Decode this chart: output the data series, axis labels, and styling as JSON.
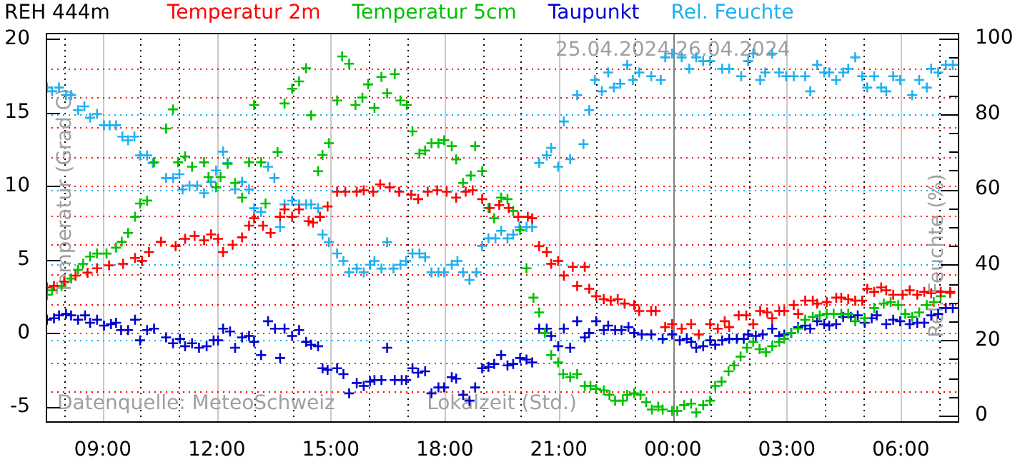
{
  "chart_data": {
    "type": "scatter",
    "title": "REH 444m",
    "xlabel": "Lokalzeit (Std.)",
    "ylabel": "Temperatur (Grad C)",
    "y2label": "Rel. Feuchte (%)",
    "xlim": [
      "2024-04-25T07:30",
      "2024-04-26T07:30"
    ],
    "xticks": [
      {
        "value": "2024-04-25T08:00",
        "label": null
      },
      {
        "value": "2024-04-25T09:00",
        "label": "09:00"
      },
      {
        "value": "2024-04-25T10:00",
        "label": null
      },
      {
        "value": "2024-04-25T11:00",
        "label": null
      },
      {
        "value": "2024-04-25T12:00",
        "label": "12:00"
      },
      {
        "value": "2024-04-25T13:00",
        "label": null
      },
      {
        "value": "2024-04-25T14:00",
        "label": null
      },
      {
        "value": "2024-04-25T15:00",
        "label": "15:00"
      },
      {
        "value": "2024-04-25T16:00",
        "label": null
      },
      {
        "value": "2024-04-25T17:00",
        "label": null
      },
      {
        "value": "2024-04-25T18:00",
        "label": "18:00"
      },
      {
        "value": "2024-04-25T19:00",
        "label": null
      },
      {
        "value": "2024-04-25T20:00",
        "label": null
      },
      {
        "value": "2024-04-25T21:00",
        "label": "21:00"
      },
      {
        "value": "2024-04-25T22:00",
        "label": null
      },
      {
        "value": "2024-04-25T23:00",
        "label": null
      },
      {
        "value": "2024-04-26T00:00",
        "label": "00:00"
      },
      {
        "value": "2024-04-26T01:00",
        "label": null
      },
      {
        "value": "2024-04-26T02:00",
        "label": null
      },
      {
        "value": "2024-04-26T03:00",
        "label": "03:00"
      },
      {
        "value": "2024-04-26T04:00",
        "label": null
      },
      {
        "value": "2024-04-26T05:00",
        "label": null
      },
      {
        "value": "2024-04-26T06:00",
        "label": "06:00"
      },
      {
        "value": "2024-04-26T07:00",
        "label": null
      }
    ],
    "ylim": [
      -6,
      20.4
    ],
    "yticks": [
      -5,
      {
        "value": -4,
        "label": null
      },
      {
        "value": -2,
        "label": null
      },
      0,
      {
        "value": 2,
        "label": null
      },
      {
        "value": 4,
        "label": null
      },
      5,
      {
        "value": 6,
        "label": null
      },
      {
        "value": 8,
        "label": null
      },
      10,
      {
        "value": 12,
        "label": null
      },
      {
        "value": 14,
        "label": null
      },
      15,
      {
        "value": 16,
        "label": null
      },
      {
        "value": 18,
        "label": null
      },
      20
    ],
    "y2lim": [
      -1.5,
      101.5
    ],
    "y2ticks": [
      0,
      {
        "value": 5,
        "label": null
      },
      {
        "value": 10,
        "label": null
      },
      {
        "value": 15,
        "label": null
      },
      20,
      {
        "value": 25,
        "label": null
      },
      {
        "value": 30,
        "label": null
      },
      {
        "value": 35,
        "label": null
      },
      40,
      {
        "value": 45,
        "label": null
      },
      {
        "value": 50,
        "label": null
      },
      {
        "value": 55,
        "label": null
      },
      60,
      {
        "value": 65,
        "label": null
      },
      {
        "value": 70,
        "label": null
      },
      {
        "value": 75,
        "label": null
      },
      80,
      {
        "value": 85,
        "label": null
      },
      {
        "value": 90,
        "label": null
      },
      {
        "value": 95,
        "label": null
      },
      100
    ],
    "grid": true,
    "legend": "top",
    "marker": "cross",
    "ref_lines": [
      {
        "axis": "x",
        "value": "2024-04-26T00:00",
        "color": "#808080"
      }
    ],
    "annotations": [
      {
        "text": "25.04.2024",
        "x": "2024-04-26T00:00",
        "y": 19.2
      },
      {
        "text": "26.04.2024",
        "x": "2024-04-26T00:00",
        "y": 19.2
      },
      "Datenquelle: MeteoSchweiz"
    ],
    "series": [
      {
        "name": "Temperatur 2m",
        "color": "#ff0000",
        "x": [
          "2024-04-25T07:32",
          "2024-04-25T07:43",
          "2024-04-25T07:59",
          "2024-04-25T08:17",
          "2024-04-25T08:36",
          "2024-04-25T08:51",
          "2024-04-25T09:10",
          "2024-04-25T09:32",
          "2024-04-25T09:51",
          "2024-04-25T10:02",
          "2024-04-25T10:13",
          "2024-04-25T10:32",
          "2024-04-25T10:55",
          "2024-04-25T11:10",
          "2024-04-25T11:25",
          "2024-04-25T11:40",
          "2024-04-25T11:51",
          "2024-04-25T12:02",
          "2024-04-25T12:10",
          "2024-04-25T12:25",
          "2024-04-25T12:40",
          "2024-04-25T12:51",
          "2024-04-25T12:59",
          "2024-04-25T13:13",
          "2024-04-25T13:25",
          "2024-04-25T13:40",
          "2024-04-25T13:47",
          "2024-04-25T13:59",
          "2024-04-25T14:10",
          "2024-04-25T14:25",
          "2024-04-25T14:32",
          "2024-04-25T14:43",
          "2024-04-25T14:55",
          "2024-04-25T15:10",
          "2024-04-25T15:23",
          "2024-04-25T15:41",
          "2024-04-25T15:52",
          "2024-04-25T16:07",
          "2024-04-25T16:18",
          "2024-04-25T16:33",
          "2024-04-25T16:48",
          "2024-04-25T17:07",
          "2024-04-25T17:18",
          "2024-04-25T17:33",
          "2024-04-25T17:48",
          "2024-04-25T18:03",
          "2024-04-25T18:18",
          "2024-04-25T18:33",
          "2024-04-25T18:44",
          "2024-04-25T18:59",
          "2024-04-25T19:11",
          "2024-04-25T19:26",
          "2024-04-25T19:41",
          "2024-04-25T19:56",
          "2024-04-25T20:11",
          "2024-04-25T20:18",
          "2024-04-25T20:29",
          "2024-04-25T20:41",
          "2024-04-25T20:48",
          "2024-04-25T20:59",
          "2024-04-25T21:08",
          "2024-04-25T21:22",
          "2024-04-25T21:29",
          "2024-04-25T21:41",
          "2024-04-25T21:48",
          "2024-04-25T21:59",
          "2024-04-25T22:11",
          "2024-04-25T22:22",
          "2024-04-25T22:33",
          "2024-04-25T22:44",
          "2024-04-25T22:59",
          "2024-04-25T23:07",
          "2024-04-25T23:26",
          "2024-04-25T23:33",
          "2024-04-25T23:48",
          "2024-04-25T23:59",
          "2024-04-26T00:14",
          "2024-04-26T00:29",
          "2024-04-26T00:41",
          "2024-04-26T00:59",
          "2024-04-26T01:11",
          "2024-04-26T01:22",
          "2024-04-26T01:29",
          "2024-04-26T01:44",
          "2024-04-26T01:56",
          "2024-04-26T02:07",
          "2024-04-26T02:18",
          "2024-04-26T02:29",
          "2024-04-26T02:37",
          "2024-04-26T02:48",
          "2024-04-26T02:56",
          "2024-04-26T03:11",
          "2024-04-26T03:18",
          "2024-04-26T03:29",
          "2024-04-26T03:41",
          "2024-04-26T03:48",
          "2024-04-26T04:03",
          "2024-04-26T04:18",
          "2024-04-26T04:26",
          "2024-04-26T04:37",
          "2024-04-26T04:48",
          "2024-04-26T04:59",
          "2024-04-26T05:07",
          "2024-04-26T05:18",
          "2024-04-26T05:29",
          "2024-04-26T05:37",
          "2024-04-26T05:48",
          "2024-04-26T06:03",
          "2024-04-26T06:14",
          "2024-04-26T06:26",
          "2024-04-26T06:37",
          "2024-04-26T06:48",
          "2024-04-26T07:03",
          "2024-04-26T07:18"
        ],
        "values": [
          3.1,
          3.2,
          3.5,
          3.9,
          4.1,
          4.4,
          4.6,
          4.7,
          5.1,
          4.9,
          5.5,
          6.2,
          5.9,
          6.4,
          6.6,
          6.3,
          6.7,
          6.4,
          5.5,
          6.0,
          6.5,
          7.3,
          7.8,
          7.3,
          6.8,
          7.9,
          8.4,
          7.9,
          8.4,
          7.6,
          7.5,
          7.9,
          8.6,
          9.6,
          9.6,
          9.6,
          9.7,
          9.6,
          10.1,
          9.9,
          9.6,
          9.4,
          9.1,
          9.6,
          9.7,
          9.6,
          9.2,
          9.6,
          9.7,
          9.1,
          8.5,
          8.7,
          8.5,
          7.9,
          7.9,
          7.8,
          5.9,
          5.5,
          4.7,
          4.9,
          3.9,
          4.5,
          3.2,
          4.5,
          3.0,
          2.5,
          2.3,
          2.2,
          2.3,
          2.0,
          1.9,
          1.5,
          1.5,
          1.5,
          0.4,
          0.6,
          0.3,
          0.6,
          -0.1,
          0.6,
          0.3,
          0.8,
          0.4,
          1.2,
          1.2,
          0.6,
          1.5,
          1.4,
          1.0,
          1.5,
          1.5,
          1.9,
          1.3,
          2.2,
          2.2,
          2.0,
          2.1,
          2.4,
          2.4,
          2.3,
          2.2,
          2.2,
          3.0,
          2.8,
          3.1,
          2.9,
          2.6,
          2.6,
          2.9,
          2.6,
          2.8,
          2.7,
          2.8,
          2.8
        ]
      },
      {
        "name": "Temperatur 5cm",
        "color": "#00c000",
        "x": [
          "2024-04-25T07:32",
          "2024-04-25T07:40",
          "2024-04-25T07:55",
          "2024-04-25T08:10",
          "2024-04-25T08:21",
          "2024-04-25T08:29",
          "2024-04-25T08:40",
          "2024-04-25T08:51",
          "2024-04-25T09:06",
          "2024-04-25T09:21",
          "2024-04-25T09:30",
          "2024-04-25T09:40",
          "2024-04-25T09:51",
          "2024-04-25T09:59",
          "2024-04-25T10:10",
          "2024-04-25T10:21",
          "2024-04-25T10:40",
          "2024-04-25T10:51",
          "2024-04-25T10:59",
          "2024-04-25T11:10",
          "2024-04-25T11:21",
          "2024-04-25T11:40",
          "2024-04-25T11:47",
          "2024-04-25T11:59",
          "2024-04-25T12:06",
          "2024-04-25T12:17",
          "2024-04-25T12:29",
          "2024-04-25T12:40",
          "2024-04-25T12:51",
          "2024-04-25T12:59",
          "2024-04-25T13:10",
          "2024-04-25T13:17",
          "2024-04-25T13:36",
          "2024-04-25T13:47",
          "2024-04-25T13:59",
          "2024-04-25T14:10",
          "2024-04-25T14:21",
          "2024-04-25T14:29",
          "2024-04-25T14:40",
          "2024-04-25T14:47",
          "2024-04-25T14:57",
          "2024-04-25T15:10",
          "2024-04-25T15:18",
          "2024-04-25T15:29",
          "2024-04-25T15:39",
          "2024-04-25T15:50",
          "2024-04-25T15:59",
          "2024-04-25T16:09",
          "2024-04-25T16:20",
          "2024-04-25T16:29",
          "2024-04-25T16:41",
          "2024-04-25T16:50",
          "2024-04-25T17:00",
          "2024-04-25T17:09",
          "2024-04-25T17:20",
          "2024-04-25T17:29",
          "2024-04-25T17:39",
          "2024-04-25T17:50",
          "2024-04-25T17:59",
          "2024-04-25T18:11",
          "2024-04-25T18:18",
          "2024-04-25T18:29",
          "2024-04-25T18:41",
          "2024-04-25T18:48",
          "2024-04-25T18:59",
          "2024-04-25T19:09",
          "2024-04-25T19:18",
          "2024-04-25T19:29",
          "2024-04-25T19:39",
          "2024-04-25T19:48",
          "2024-04-25T19:59",
          "2024-04-25T20:09",
          "2024-04-25T20:20",
          "2024-04-25T20:29",
          "2024-04-25T20:38",
          "2024-04-25T20:48",
          "2024-04-25T20:59",
          "2024-04-25T21:07",
          "2024-04-25T21:18",
          "2024-04-25T21:29",
          "2024-04-25T21:41",
          "2024-04-25T21:50",
          "2024-04-25T21:59",
          "2024-04-25T22:11",
          "2024-04-25T22:20",
          "2024-04-25T22:29",
          "2024-04-25T22:41",
          "2024-04-25T22:48",
          "2024-04-25T22:59",
          "2024-04-25T23:09",
          "2024-04-25T23:18",
          "2024-04-25T23:27",
          "2024-04-25T23:37",
          "2024-04-25T23:44",
          "2024-04-25T23:59",
          "2024-04-26T00:07",
          "2024-04-26T00:18",
          "2024-04-26T00:29",
          "2024-04-26T00:37",
          "2024-04-26T00:48",
          "2024-04-26T00:59",
          "2024-04-26T01:07",
          "2024-04-26T01:17",
          "2024-04-26T01:28",
          "2024-04-26T01:37",
          "2024-04-26T01:47",
          "2024-04-26T01:57",
          "2024-04-26T02:07",
          "2024-04-26T02:17",
          "2024-04-26T02:27",
          "2024-04-26T02:37",
          "2024-04-26T02:48",
          "2024-04-26T02:56",
          "2024-04-26T03:07",
          "2024-04-26T03:18",
          "2024-04-26T03:29",
          "2024-04-26T03:41",
          "2024-04-26T03:52",
          "2024-04-26T04:03",
          "2024-04-26T04:14",
          "2024-04-26T04:26",
          "2024-04-26T04:37",
          "2024-04-26T04:48",
          "2024-04-26T05:03",
          "2024-04-26T05:18",
          "2024-04-26T05:33",
          "2024-04-26T05:44",
          "2024-04-26T05:56",
          "2024-04-26T06:07",
          "2024-04-26T06:18",
          "2024-04-26T06:29",
          "2024-04-26T06:41",
          "2024-04-26T06:52",
          "2024-04-26T07:03",
          "2024-04-26T07:18"
        ],
        "values": [
          2.6,
          2.9,
          3.2,
          3.7,
          4.3,
          4.7,
          5.2,
          5.4,
          5.4,
          5.8,
          6.2,
          6.8,
          7.9,
          8.8,
          9.0,
          11.6,
          13.9,
          15.2,
          11.6,
          12.0,
          11.3,
          11.6,
          10.6,
          9.9,
          10.6,
          11.5,
          10.2,
          9.2,
          11.6,
          15.5,
          11.6,
          8.8,
          12.3,
          15.6,
          16.6,
          17.1,
          18.0,
          14.8,
          11.0,
          12.1,
          12.9,
          15.8,
          18.8,
          18.3,
          15.5,
          16.0,
          16.9,
          15.3,
          17.4,
          16.3,
          17.6,
          15.8,
          15.5,
          13.7,
          12.2,
          12.4,
          12.9,
          12.9,
          13.1,
          12.7,
          11.8,
          10.2,
          10.7,
          12.7,
          11.0,
          8.5,
          7.8,
          9.2,
          9.1,
          8.3,
          7.0,
          4.4,
          2.4,
          1.4,
          0.0,
          -1.5,
          -2.0,
          -2.8,
          -3.0,
          -2.8,
          -3.6,
          -3.6,
          -3.8,
          -3.9,
          -4.2,
          -4.6,
          -4.6,
          -4.2,
          -4.1,
          -4.2,
          -4.7,
          -5.2,
          -5.0,
          -5.2,
          -5.3,
          -5.3,
          -4.9,
          -4.8,
          -5.4,
          -4.9,
          -4.6,
          -3.6,
          -3.3,
          -2.6,
          -2.2,
          -1.6,
          -1.0,
          -0.6,
          -1.1,
          -1.3,
          -0.9,
          -0.6,
          -0.4,
          0.0,
          0.3,
          0.9,
          1.1,
          1.2,
          1.3,
          1.3,
          1.3,
          1.3,
          0.8,
          1.0,
          1.7,
          2.0,
          2.1,
          1.9,
          1.3,
          1.1,
          1.4,
          1.9,
          2.1,
          2.5,
          2.7
        ]
      },
      {
        "name": "Taupunkt",
        "color": "#0000d0",
        "x": [
          "2024-04-25T07:32",
          "2024-04-25T07:43",
          "2024-04-25T07:51",
          "2024-04-25T08:02",
          "2024-04-25T08:10",
          "2024-04-25T08:21",
          "2024-04-25T08:32",
          "2024-04-25T08:40",
          "2024-04-25T08:51",
          "2024-04-25T09:02",
          "2024-04-25T09:13",
          "2024-04-25T09:21",
          "2024-04-25T09:29",
          "2024-04-25T09:40",
          "2024-04-25T09:51",
          "2024-04-25T09:59",
          "2024-04-25T10:10",
          "2024-04-25T10:21",
          "2024-04-25T10:40",
          "2024-04-25T10:51",
          "2024-04-25T11:02",
          "2024-04-25T11:10",
          "2024-04-25T11:21",
          "2024-04-25T11:32",
          "2024-04-25T11:44",
          "2024-04-25T11:55",
          "2024-04-25T12:02",
          "2024-04-25T12:10",
          "2024-04-25T12:21",
          "2024-04-25T12:29",
          "2024-04-25T12:40",
          "2024-04-25T12:51",
          "2024-04-25T12:59",
          "2024-04-25T13:10",
          "2024-04-25T13:21",
          "2024-04-25T13:32",
          "2024-04-25T13:40",
          "2024-04-25T13:47",
          "2024-04-25T13:59",
          "2024-04-25T14:10",
          "2024-04-25T14:21",
          "2024-04-25T14:29",
          "2024-04-25T14:40",
          "2024-04-25T14:47",
          "2024-04-25T14:55",
          "2024-04-25T15:10",
          "2024-04-25T15:20",
          "2024-04-25T15:29",
          "2024-04-25T15:41",
          "2024-04-25T15:52",
          "2024-04-25T16:02",
          "2024-04-25T16:09",
          "2024-04-25T16:20",
          "2024-04-25T16:29",
          "2024-04-25T16:41",
          "2024-04-25T16:52",
          "2024-04-25T16:59",
          "2024-04-25T17:09",
          "2024-04-25T17:18",
          "2024-04-25T17:29",
          "2024-04-25T17:39",
          "2024-04-25T17:50",
          "2024-04-25T17:59",
          "2024-04-25T18:11",
          "2024-04-25T18:18",
          "2024-04-25T18:29",
          "2024-04-25T18:39",
          "2024-04-25T18:48",
          "2024-04-25T18:59",
          "2024-04-25T19:09",
          "2024-04-25T19:18",
          "2024-04-25T19:29",
          "2024-04-25T19:39",
          "2024-04-25T19:48",
          "2024-04-25T19:59",
          "2024-04-25T20:09",
          "2024-04-25T20:18",
          "2024-04-25T20:29",
          "2024-04-25T20:41",
          "2024-04-25T20:48",
          "2024-04-25T20:59",
          "2024-04-25T21:08",
          "2024-04-25T21:18",
          "2024-04-25T21:29",
          "2024-04-25T21:41",
          "2024-04-25T21:48",
          "2024-04-25T21:59",
          "2024-04-25T22:11",
          "2024-04-25T22:18",
          "2024-04-25T22:29",
          "2024-04-25T22:39",
          "2024-04-25T22:50",
          "2024-04-25T22:59",
          "2024-04-25T23:11",
          "2024-04-25T23:26",
          "2024-04-25T23:44",
          "2024-04-25T23:59",
          "2024-04-26T00:11",
          "2024-04-26T00:22",
          "2024-04-26T00:29",
          "2024-04-26T00:37",
          "2024-04-26T00:48",
          "2024-04-26T00:59",
          "2024-04-26T01:07",
          "2024-04-26T01:18",
          "2024-04-26T01:29",
          "2024-04-26T01:41",
          "2024-04-26T01:52",
          "2024-04-26T01:59",
          "2024-04-26T02:11",
          "2024-04-26T02:22",
          "2024-04-26T02:37",
          "2024-04-26T02:48",
          "2024-04-26T02:56",
          "2024-04-26T03:07",
          "2024-04-26T03:18",
          "2024-04-26T03:29",
          "2024-04-26T03:37",
          "2024-04-26T03:48",
          "2024-04-26T03:59",
          "2024-04-26T04:07",
          "2024-04-26T04:18",
          "2024-04-26T04:29",
          "2024-04-26T04:41",
          "2024-04-26T04:52",
          "2024-04-26T05:03",
          "2024-04-26T05:14",
          "2024-04-26T05:22",
          "2024-04-26T05:37",
          "2024-04-26T05:48",
          "2024-04-26T05:59",
          "2024-04-26T06:14",
          "2024-04-26T06:26",
          "2024-04-26T06:37",
          "2024-04-26T06:48",
          "2024-04-26T06:59",
          "2024-04-26T07:11",
          "2024-04-26T07:22"
        ],
        "values": [
          0.9,
          1.0,
          1.2,
          1.3,
          1.2,
          0.9,
          1.2,
          0.7,
          0.9,
          0.5,
          0.6,
          0.7,
          0.2,
          0.2,
          0.9,
          -0.5,
          0.2,
          0.3,
          -0.3,
          -0.7,
          -0.4,
          -0.9,
          -0.7,
          -1.0,
          -0.9,
          -0.5,
          -0.5,
          0.3,
          0.1,
          -1.0,
          -0.3,
          -0.2,
          -0.6,
          -1.5,
          0.8,
          0.3,
          -1.7,
          0.3,
          -0.2,
          0.2,
          -0.6,
          -0.8,
          -0.9,
          -2.4,
          -2.5,
          -2.4,
          -2.8,
          -4.1,
          -3.4,
          -3.6,
          -3.3,
          -3.2,
          -3.2,
          -1.0,
          -3.2,
          -3.2,
          -3.2,
          -2.4,
          -2.7,
          -2.6,
          -4.1,
          -3.7,
          -3.7,
          -3.0,
          -3.1,
          -4.2,
          -4.6,
          -3.7,
          -2.4,
          -2.3,
          -2.1,
          -1.5,
          -2.2,
          -2.1,
          -1.7,
          -1.8,
          -2.0,
          0.3,
          0.3,
          -0.2,
          -0.9,
          0.3,
          -1.0,
          0.8,
          -0.3,
          0.0,
          0.8,
          0.2,
          0.5,
          0.2,
          0.2,
          0.4,
          0.0,
          -0.1,
          -0.1,
          -0.4,
          -0.1,
          -0.5,
          -0.4,
          -0.6,
          -1.0,
          -0.9,
          -0.5,
          -0.8,
          -0.5,
          -0.4,
          -0.4,
          -0.4,
          -0.1,
          -0.2,
          -0.1,
          0.3,
          -0.2,
          -0.1,
          0.0,
          0.4,
          0.5,
          0.3,
          0.8,
          0.6,
          0.5,
          0.6,
          1.1,
          1.1,
          1.2,
          0.7,
          1.0,
          1.2,
          0.6,
          0.9,
          0.8,
          0.6,
          0.7,
          0.7,
          1.2,
          1.3,
          1.7,
          1.7
        ]
      },
      {
        "name": "Rel. Feuchte",
        "color": "#20b0f0",
        "axis": "y2",
        "x": [
          "2024-04-25T07:32",
          "2024-04-25T07:40",
          "2024-04-25T07:51",
          "2024-04-25T08:02",
          "2024-04-25T08:10",
          "2024-04-25T08:21",
          "2024-04-25T08:31",
          "2024-04-25T08:40",
          "2024-04-25T08:51",
          "2024-04-25T09:02",
          "2024-04-25T09:11",
          "2024-04-25T09:21",
          "2024-04-25T09:31",
          "2024-04-25T09:40",
          "2024-04-25T09:50",
          "2024-04-25T09:59",
          "2024-04-25T10:10",
          "2024-04-25T10:19",
          "2024-04-25T10:40",
          "2024-04-25T10:51",
          "2024-04-25T11:01",
          "2024-04-25T11:06",
          "2024-04-25T11:17",
          "2024-04-25T11:29",
          "2024-04-25T11:40",
          "2024-04-25T11:51",
          "2024-04-25T11:59",
          "2024-04-25T12:10",
          "2024-04-25T12:17",
          "2024-04-25T12:29",
          "2024-04-25T12:40",
          "2024-04-25T12:51",
          "2024-04-25T12:59",
          "2024-04-25T13:10",
          "2024-04-25T13:21",
          "2024-04-25T13:31",
          "2024-04-25T13:40",
          "2024-04-25T13:47",
          "2024-04-25T13:59",
          "2024-04-25T14:10",
          "2024-04-25T14:21",
          "2024-04-25T14:29",
          "2024-04-25T14:40",
          "2024-04-25T14:47",
          "2024-04-25T14:57",
          "2024-04-25T15:10",
          "2024-04-25T15:20",
          "2024-04-25T15:29",
          "2024-04-25T15:41",
          "2024-04-25T15:52",
          "2024-04-25T16:02",
          "2024-04-25T16:09",
          "2024-04-25T16:20",
          "2024-04-25T16:29",
          "2024-04-25T16:39",
          "2024-04-25T16:50",
          "2024-04-25T16:59",
          "2024-04-25T17:09",
          "2024-04-25T17:20",
          "2024-04-25T17:29",
          "2024-04-25T17:39",
          "2024-04-25T17:50",
          "2024-04-25T17:59",
          "2024-04-25T18:11",
          "2024-04-25T18:20",
          "2024-04-25T18:29",
          "2024-04-25T18:39",
          "2024-04-25T18:50",
          "2024-04-25T18:59",
          "2024-04-25T19:09",
          "2024-04-25T19:20",
          "2024-04-25T19:29",
          "2024-04-25T19:39",
          "2024-04-25T19:48",
          "2024-04-25T19:58",
          "2024-04-25T20:09",
          "2024-04-25T20:18",
          "2024-04-25T20:29",
          "2024-04-25T20:41",
          "2024-04-25T20:48",
          "2024-04-25T20:59",
          "2024-04-25T21:08",
          "2024-04-25T21:18",
          "2024-04-25T21:29",
          "2024-04-25T21:39",
          "2024-04-25T21:48",
          "2024-04-25T21:57",
          "2024-04-25T22:08",
          "2024-04-25T22:18",
          "2024-04-25T22:27",
          "2024-04-25T22:37",
          "2024-04-25T22:48",
          "2024-04-25T22:57",
          "2024-04-25T23:07",
          "2024-04-25T23:26",
          "2024-04-25T23:41",
          "2024-04-25T23:48",
          "2024-04-25T23:59",
          "2024-04-26T00:14",
          "2024-04-26T00:26",
          "2024-04-26T00:37",
          "2024-04-26T00:48",
          "2024-04-26T00:59",
          "2024-04-26T01:18",
          "2024-04-26T01:29",
          "2024-04-26T01:48",
          "2024-04-26T01:59",
          "2024-04-26T02:07",
          "2024-04-26T02:18",
          "2024-04-26T02:26",
          "2024-04-26T02:37",
          "2024-04-26T02:48",
          "2024-04-26T02:59",
          "2024-04-26T03:11",
          "2024-04-26T03:29",
          "2024-04-26T03:37",
          "2024-04-26T03:48",
          "2024-04-26T03:59",
          "2024-04-26T04:07",
          "2024-04-26T04:18",
          "2024-04-26T04:29",
          "2024-04-26T04:37",
          "2024-04-26T04:48",
          "2024-04-26T04:59",
          "2024-04-26T05:07",
          "2024-04-26T05:18",
          "2024-04-26T05:29",
          "2024-04-26T05:37",
          "2024-04-26T05:48",
          "2024-04-26T05:59",
          "2024-04-26T06:18",
          "2024-04-26T06:29",
          "2024-04-26T06:41",
          "2024-04-26T06:48",
          "2024-04-26T06:59",
          "2024-04-26T07:11",
          "2024-04-26T07:22"
        ],
        "values": [
          87,
          86,
          87,
          85,
          85,
          81,
          82,
          79,
          80,
          77,
          77,
          77,
          74,
          73,
          74,
          69,
          69,
          67,
          63,
          63,
          64,
          60,
          61,
          61,
          59,
          62,
          65,
          70,
          67,
          60,
          62,
          60,
          55,
          54,
          66,
          63,
          50,
          56,
          57,
          56,
          56,
          56,
          55,
          48,
          46,
          43,
          41,
          38,
          39,
          38,
          40,
          41,
          39,
          46,
          39,
          40,
          41,
          43,
          43,
          42,
          38,
          38,
          38,
          40,
          41,
          38,
          36,
          38,
          45,
          47,
          47,
          49,
          47,
          48,
          50,
          50,
          50,
          67,
          69,
          71,
          66,
          78,
          68,
          85,
          72,
          81,
          89,
          86,
          91,
          87,
          88,
          93,
          89,
          91,
          90,
          89,
          95,
          96,
          95,
          92,
          95,
          94,
          94,
          92,
          92,
          90,
          94,
          96,
          89,
          91,
          96,
          91,
          90,
          90,
          90,
          86,
          93,
          91,
          91,
          89,
          91,
          92,
          95,
          90,
          87,
          90,
          87,
          86,
          90,
          89,
          85,
          89,
          87,
          92,
          91,
          93,
          93
        ]
      }
    ]
  }
}
